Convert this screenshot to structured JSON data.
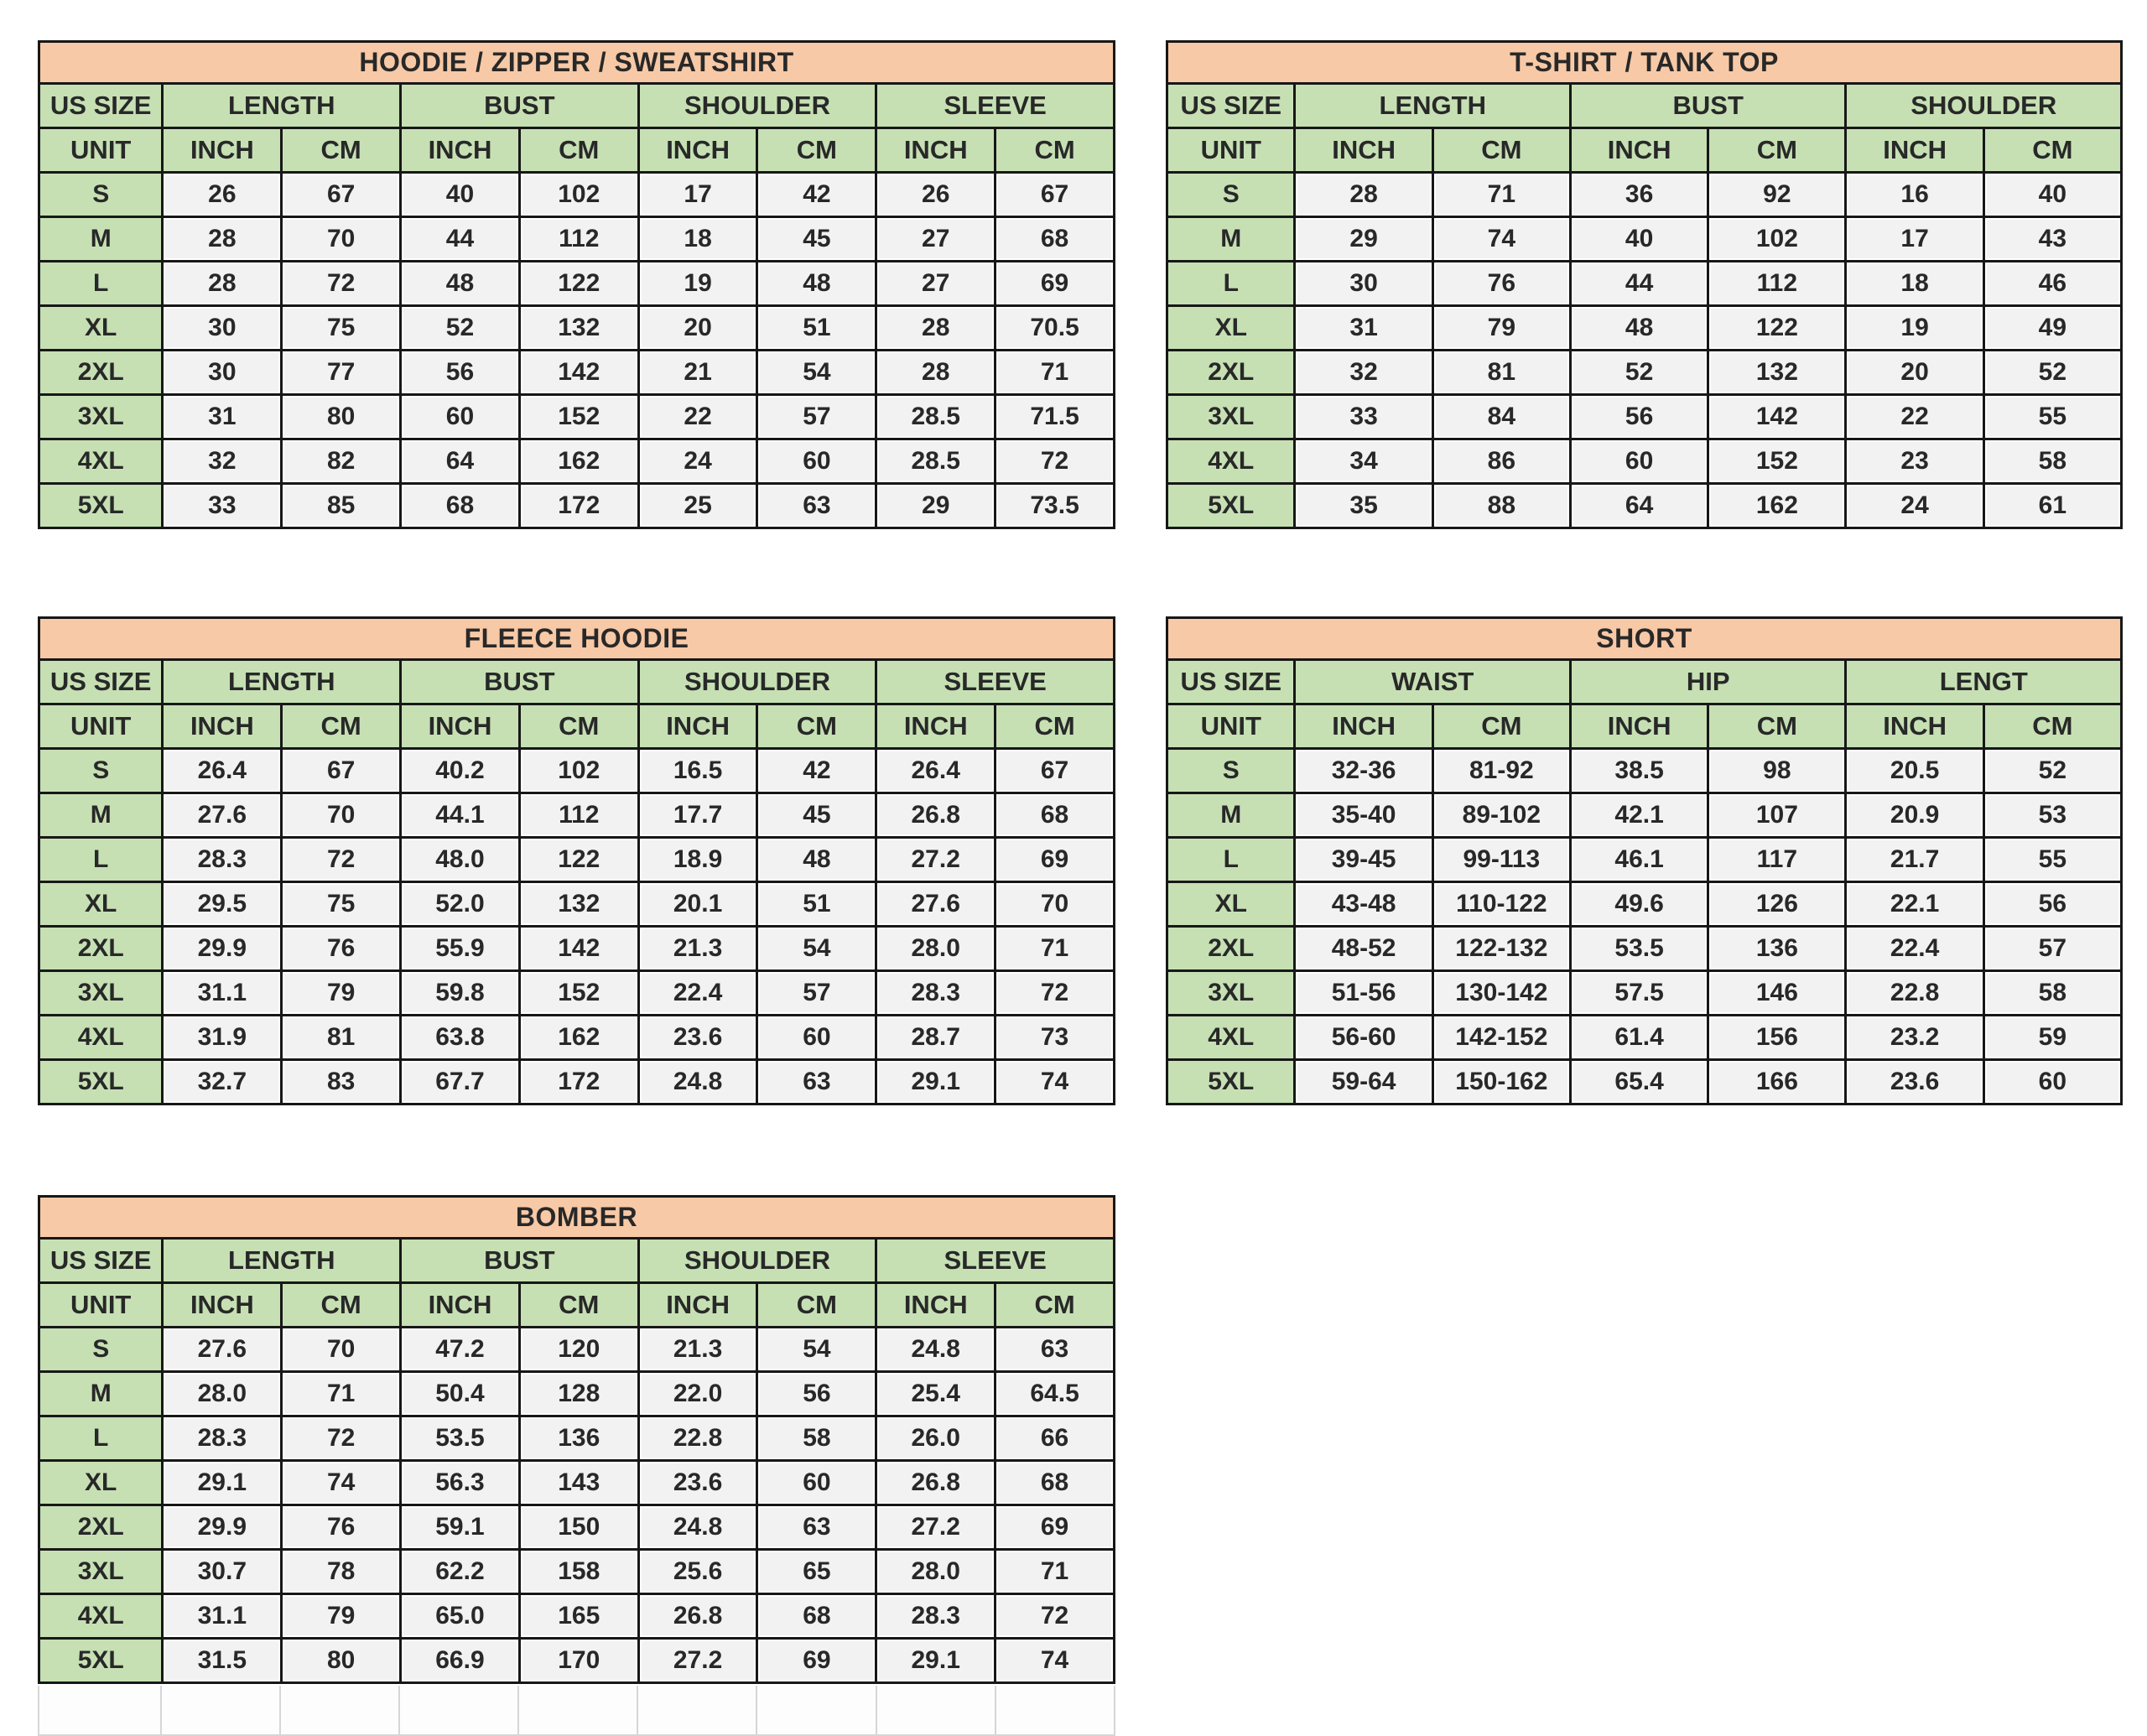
{
  "colors": {
    "page_bg": "#FFFFFF",
    "title_bg": "#F8C9A6",
    "header_bg": "#C6E0B4",
    "cell_bg": "#F2F2F2",
    "border": "#171717",
    "text": "#282828"
  },
  "labels": {
    "us_size": "US SIZE",
    "unit": "UNIT",
    "inch": "INCH",
    "cm": "CM"
  },
  "tables": [
    {
      "id": "hoodie-zipper-sweatshirt",
      "title": "HOODIE / ZIPPER / SWEATSHIRT",
      "columns": [
        "LENGTH",
        "BUST",
        "SHOULDER",
        "SLEEVE"
      ],
      "rows": [
        [
          "S",
          "26",
          "67",
          "40",
          "102",
          "17",
          "42",
          "26",
          "67"
        ],
        [
          "M",
          "28",
          "70",
          "44",
          "112",
          "18",
          "45",
          "27",
          "68"
        ],
        [
          "L",
          "28",
          "72",
          "48",
          "122",
          "19",
          "48",
          "27",
          "69"
        ],
        [
          "XL",
          "30",
          "75",
          "52",
          "132",
          "20",
          "51",
          "28",
          "70.5"
        ],
        [
          "2XL",
          "30",
          "77",
          "56",
          "142",
          "21",
          "54",
          "28",
          "71"
        ],
        [
          "3XL",
          "31",
          "80",
          "60",
          "152",
          "22",
          "57",
          "28.5",
          "71.5"
        ],
        [
          "4XL",
          "32",
          "82",
          "64",
          "162",
          "24",
          "60",
          "28.5",
          "72"
        ],
        [
          "5XL",
          "33",
          "85",
          "68",
          "172",
          "25",
          "63",
          "29",
          "73.5"
        ]
      ]
    },
    {
      "id": "tshirt-tank-top",
      "title": "T-SHIRT / TANK TOP",
      "columns": [
        "LENGTH",
        "BUST",
        "SHOULDER"
      ],
      "rows": [
        [
          "S",
          "28",
          "71",
          "36",
          "92",
          "16",
          "40"
        ],
        [
          "M",
          "29",
          "74",
          "40",
          "102",
          "17",
          "43"
        ],
        [
          "L",
          "30",
          "76",
          "44",
          "112",
          "18",
          "46"
        ],
        [
          "XL",
          "31",
          "79",
          "48",
          "122",
          "19",
          "49"
        ],
        [
          "2XL",
          "32",
          "81",
          "52",
          "132",
          "20",
          "52"
        ],
        [
          "3XL",
          "33",
          "84",
          "56",
          "142",
          "22",
          "55"
        ],
        [
          "4XL",
          "34",
          "86",
          "60",
          "152",
          "23",
          "58"
        ],
        [
          "5XL",
          "35",
          "88",
          "64",
          "162",
          "24",
          "61"
        ]
      ]
    },
    {
      "id": "fleece-hoodie",
      "title": "FLEECE HOODIE",
      "columns": [
        "LENGTH",
        "BUST",
        "SHOULDER",
        "SLEEVE"
      ],
      "rows": [
        [
          "S",
          "26.4",
          "67",
          "40.2",
          "102",
          "16.5",
          "42",
          "26.4",
          "67"
        ],
        [
          "M",
          "27.6",
          "70",
          "44.1",
          "112",
          "17.7",
          "45",
          "26.8",
          "68"
        ],
        [
          "L",
          "28.3",
          "72",
          "48.0",
          "122",
          "18.9",
          "48",
          "27.2",
          "69"
        ],
        [
          "XL",
          "29.5",
          "75",
          "52.0",
          "132",
          "20.1",
          "51",
          "27.6",
          "70"
        ],
        [
          "2XL",
          "29.9",
          "76",
          "55.9",
          "142",
          "21.3",
          "54",
          "28.0",
          "71"
        ],
        [
          "3XL",
          "31.1",
          "79",
          "59.8",
          "152",
          "22.4",
          "57",
          "28.3",
          "72"
        ],
        [
          "4XL",
          "31.9",
          "81",
          "63.8",
          "162",
          "23.6",
          "60",
          "28.7",
          "73"
        ],
        [
          "5XL",
          "32.7",
          "83",
          "67.7",
          "172",
          "24.8",
          "63",
          "29.1",
          "74"
        ]
      ]
    },
    {
      "id": "short",
      "title": "SHORT",
      "columns": [
        "WAIST",
        "HIP",
        "LENGT"
      ],
      "rows": [
        [
          "S",
          "32-36",
          "81-92",
          "38.5",
          "98",
          "20.5",
          "52"
        ],
        [
          "M",
          "35-40",
          "89-102",
          "42.1",
          "107",
          "20.9",
          "53"
        ],
        [
          "L",
          "39-45",
          "99-113",
          "46.1",
          "117",
          "21.7",
          "55"
        ],
        [
          "XL",
          "43-48",
          "110-122",
          "49.6",
          "126",
          "22.1",
          "56"
        ],
        [
          "2XL",
          "48-52",
          "122-132",
          "53.5",
          "136",
          "22.4",
          "57"
        ],
        [
          "3XL",
          "51-56",
          "130-142",
          "57.5",
          "146",
          "22.8",
          "58"
        ],
        [
          "4XL",
          "56-60",
          "142-152",
          "61.4",
          "156",
          "23.2",
          "59"
        ],
        [
          "5XL",
          "59-64",
          "150-162",
          "65.4",
          "166",
          "23.6",
          "60"
        ]
      ]
    },
    {
      "id": "bomber",
      "title": "BOMBER",
      "columns": [
        "LENGTH",
        "BUST",
        "SHOULDER",
        "SLEEVE"
      ],
      "rows": [
        [
          "S",
          "27.6",
          "70",
          "47.2",
          "120",
          "21.3",
          "54",
          "24.8",
          "63"
        ],
        [
          "M",
          "28.0",
          "71",
          "50.4",
          "128",
          "22.0",
          "56",
          "25.4",
          "64.5"
        ],
        [
          "L",
          "28.3",
          "72",
          "53.5",
          "136",
          "22.8",
          "58",
          "26.0",
          "66"
        ],
        [
          "XL",
          "29.1",
          "74",
          "56.3",
          "143",
          "23.6",
          "60",
          "26.8",
          "68"
        ],
        [
          "2XL",
          "29.9",
          "76",
          "59.1",
          "150",
          "24.8",
          "63",
          "27.2",
          "69"
        ],
        [
          "3XL",
          "30.7",
          "78",
          "62.2",
          "158",
          "25.6",
          "65",
          "28.0",
          "71"
        ],
        [
          "4XL",
          "31.1",
          "79",
          "65.0",
          "165",
          "26.8",
          "68",
          "28.3",
          "72"
        ],
        [
          "5XL",
          "31.5",
          "80",
          "66.9",
          "170",
          "27.2",
          "69",
          "29.1",
          "74"
        ]
      ]
    }
  ]
}
